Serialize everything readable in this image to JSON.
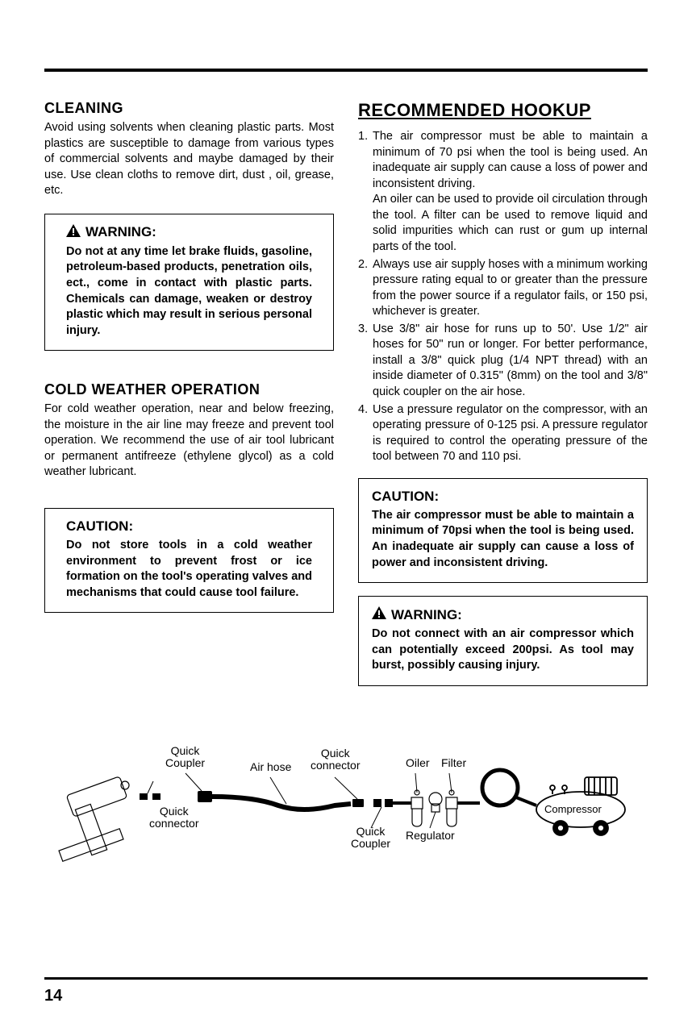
{
  "page_number": "14",
  "left": {
    "cleaning": {
      "heading": "CLEANING",
      "body": "Avoid using solvents when cleaning plastic parts. Most plastics are susceptible to damage from various types of commercial solvents and maybe damaged by their use. Use clean cloths to remove dirt, dust , oil, grease, etc."
    },
    "warning1": {
      "heading": "WARNING:",
      "body": "Do not at any time let brake fluids, gasoline, petroleum-based products, penetration oils, ect., come in contact with plastic parts. Chemicals can damage, weaken or destroy plastic which may result in serious personal injury."
    },
    "cold": {
      "heading": "COLD WEATHER OPERATION",
      "body": "For cold weather operation, near and below freezing, the moisture in the air line may freeze and prevent tool operation. We recommend the use of air tool lubricant or permanent antifreeze (ethylene glycol) as a cold weather lubricant."
    },
    "caution1": {
      "heading": "CAUTION:",
      "body": "Do not store tools in a cold weather environment to prevent frost or ice formation on the tool's operating valves and mechanisms that could cause tool failure."
    }
  },
  "right": {
    "hookup": {
      "heading": "RECOMMENDED HOOKUP",
      "items": [
        "The air compressor must be able to maintain a minimum of 70 psi when the tool is being used. An inadequate air supply can cause a loss of power and inconsistent driving.\nAn oiler can be used to provide oil circulation through the tool. A filter can be used to remove liquid and solid impurities which can rust or gum up internal parts of the tool.",
        "Always use air supply hoses with a minimum working pressure rating equal to or greater than the pressure from the power source if a regulator fails, or 150 psi, whichever is greater.",
        "Use 3/8\" air hose for runs up to 50'. Use 1/2\" air hoses for 50\" run or longer. For better performance, install a 3/8\" quick plug (1/4 NPT thread) with an inside diameter of 0.315\" (8mm) on the tool and 3/8\" quick coupler on the air hose.",
        "Use a pressure regulator on the compressor, with an operating pressure of 0-125 psi. A pressure regulator is required to control the operating pressure of the tool between 70 and 110 psi."
      ]
    },
    "caution2": {
      "heading": "CAUTION:",
      "body": "The air compressor must be able to maintain a minimum of 70psi when the tool is being used. An inadequate air supply can cause a loss of power and inconsistent driving."
    },
    "warning2": {
      "heading": "WARNING:",
      "body": "Do not connect with an air compressor which can potentially exceed 200psi. As tool may burst, possibly causing injury."
    }
  },
  "diagram": {
    "labels": {
      "quick_coupler_1": "Quick\nCoupler",
      "quick_connector_1": "Quick\nconnector",
      "air_hose": "Air hose",
      "quick_connector_2": "Quick\nconnector",
      "quick_coupler_2": "Quick\nCoupler",
      "oiler": "Oiler",
      "filter": "Filter",
      "regulator": "Regulator",
      "compressor": "Compressor"
    }
  },
  "colors": {
    "text": "#000000",
    "bg": "#ffffff",
    "rule": "#000000"
  }
}
